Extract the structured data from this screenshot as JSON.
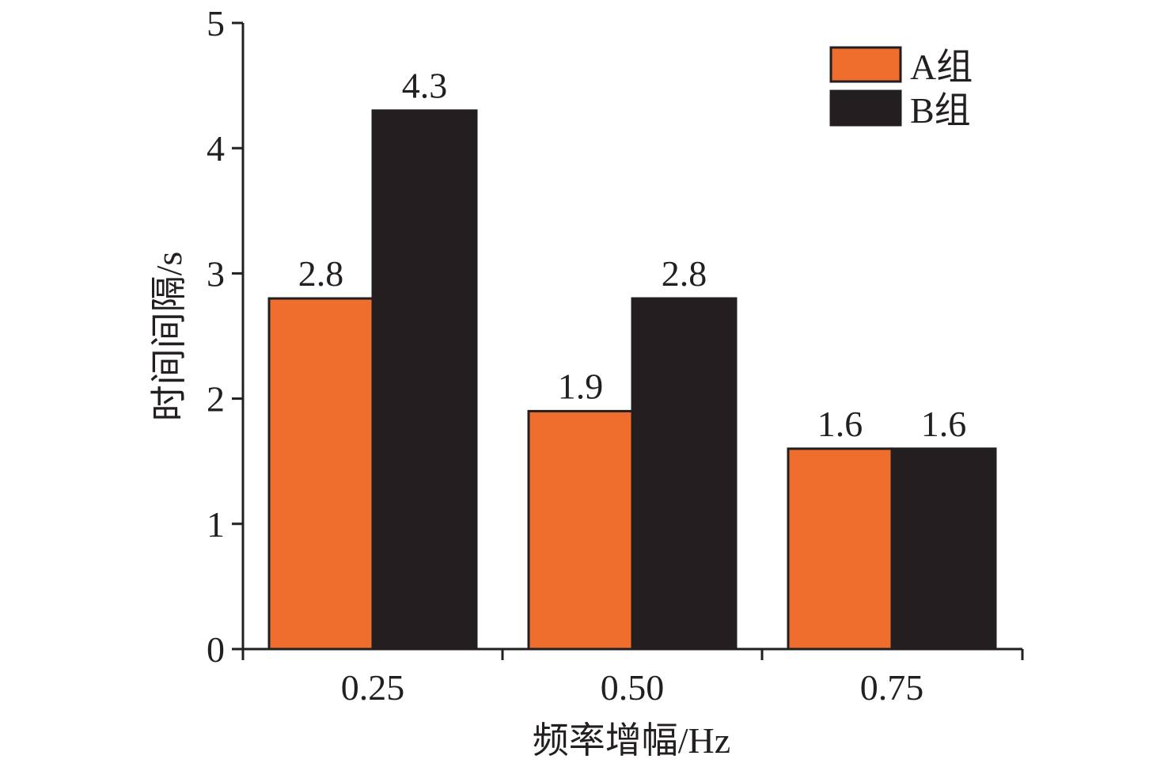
{
  "chart_data": {
    "type": "bar",
    "categories": [
      "0.25",
      "0.50",
      "0.75"
    ],
    "series": [
      {
        "name": "A组",
        "values": [
          2.8,
          1.9,
          1.6
        ],
        "color": "#ef6e2d",
        "label_text": [
          "2.8",
          "1.9",
          "1.6"
        ]
      },
      {
        "name": "B组",
        "values": [
          4.3,
          2.8,
          1.6
        ],
        "color": "#231f20",
        "label_text": [
          "4.3",
          "2.8",
          "1.6"
        ]
      }
    ],
    "xlabel": "频率增幅/Hz",
    "ylabel": "时间间隔/s",
    "ylim": [
      0,
      5
    ],
    "yticks": [
      "0",
      "1",
      "2",
      "3",
      "4",
      "5"
    ],
    "grid": false,
    "legend_position": "top-right"
  }
}
